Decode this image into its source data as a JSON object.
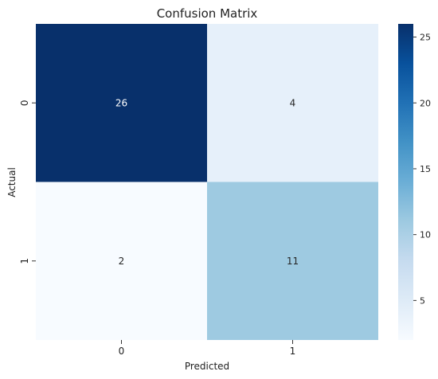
{
  "chart_data": {
    "type": "heatmap",
    "title": "Confusion Matrix",
    "xlabel": "Predicted",
    "ylabel": "Actual",
    "x_categories": [
      "0",
      "1"
    ],
    "y_categories": [
      "0",
      "1"
    ],
    "values": [
      [
        26,
        4
      ],
      [
        2,
        11
      ]
    ],
    "colormap": "Blues",
    "colorbar": {
      "range": [
        2,
        26
      ],
      "ticks": [
        5,
        10,
        15,
        20,
        25
      ],
      "tick_labels": [
        "5",
        "10",
        "15",
        "20",
        "25"
      ]
    },
    "grid": false
  }
}
